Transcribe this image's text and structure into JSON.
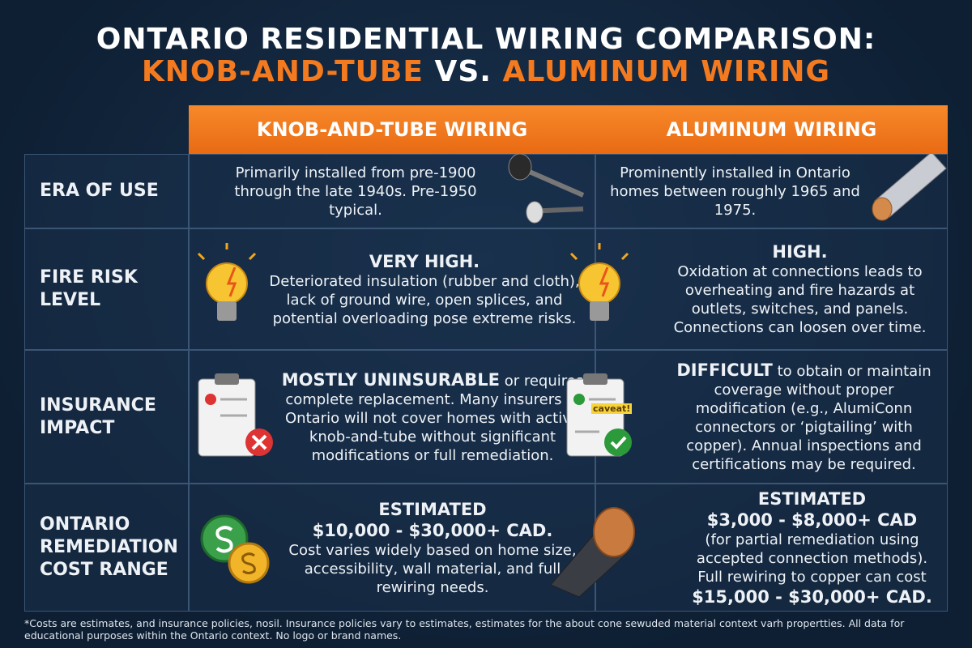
{
  "header": {
    "title_line1": "ONTARIO RESIDENTIAL WIRING COMPARISON:",
    "title_line2_left": "KNOB-AND-TUBE",
    "title_line2_mid": "VS.",
    "title_line2_right": "ALUMINUM WIRING"
  },
  "table": {
    "columns": [
      "KNOB-AND-TUBE WIRING",
      "ALUMINUM WIRING"
    ],
    "rows": [
      {
        "label": "ERA OF USE",
        "cells": [
          {
            "body": "Primarily installed from pre-1900 through the late 1940s. Pre-1950 typical."
          },
          {
            "body": "Prominently installed in Ontario homes between roughly 1965 and 1975."
          }
        ]
      },
      {
        "label": "FIRE RISK LEVEL",
        "cells": [
          {
            "heading": "VERY HIGH.",
            "body": "Deteriorated insulation (rubber and cloth), lack of ground wire, open splices, and potential overloading pose extreme risks."
          },
          {
            "heading": "HIGH.",
            "body": "Oxidation at connections leads to overheating and fire hazards at outlets, switches, and panels. Connections can loosen over time."
          }
        ]
      },
      {
        "label": "INSURANCE IMPACT",
        "cells": [
          {
            "lead": "MOSTLY UNINSURABLE",
            "body": "or requires complete replacement. Many insurers in Ontario will not cover homes with active knob-and-tube without significant modifications or full remediation."
          },
          {
            "lead": "DIFFICULT",
            "body": "to obtain or maintain coverage without proper modification (e.g., AlumiConn connectors or ‘pigtailing’ with copper). Annual inspections and certifications may be required.",
            "icon_label": "caveat!"
          }
        ]
      },
      {
        "label": "ONTARIO REMEDIATION COST RANGE",
        "cells": [
          {
            "heading": "ESTIMATED",
            "amount": "$10,000 - $30,000+ CAD.",
            "body": "Cost varies widely based on home size, accessibility, wall material, and full rewiring needs."
          },
          {
            "heading": "ESTIMATED",
            "amount": "$3,000 - $8,000+ CAD",
            "body": "(for partial remediation using accepted connection methods). Full rewiring to copper can cost",
            "note_amount": "$15,000 - $30,000+ CAD."
          }
        ]
      }
    ]
  },
  "footer": {
    "note": "*Costs are estimates, and insurance policies, nosil. Insurance policies vary to estimates, estimates for the about cone sewuded material context varh propertties. All data for educational purposes within the Ontario context. No logo or brand names."
  }
}
